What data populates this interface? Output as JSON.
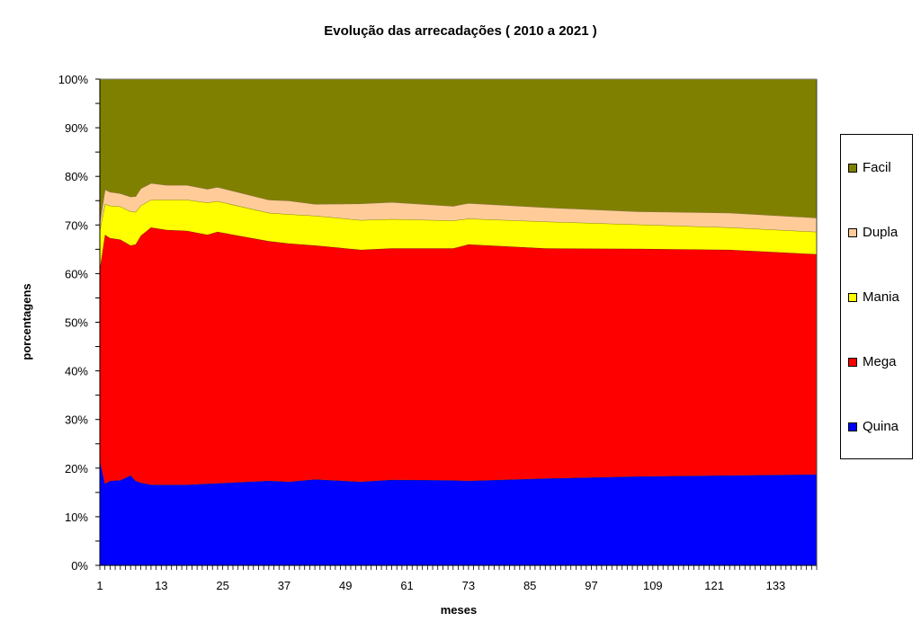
{
  "chart_data": {
    "type": "area",
    "stacked": true,
    "normalized": true,
    "title": "Evolução das arrecadações ( 2010 a 2021 )",
    "xlabel": "meses",
    "ylabel": "porcentagens",
    "xlim": [
      1,
      141
    ],
    "ylim": [
      0,
      100
    ],
    "x_tick_labels": [
      "1",
      "13",
      "25",
      "37",
      "49",
      "61",
      "73",
      "85",
      "97",
      "109",
      "121",
      "133"
    ],
    "x_tick_values": [
      1,
      13,
      25,
      37,
      49,
      61,
      73,
      85,
      97,
      109,
      121,
      133
    ],
    "y_tick_labels": [
      "0%",
      "10%",
      "20%",
      "30%",
      "40%",
      "50%",
      "60%",
      "70%",
      "80%",
      "90%",
      "100%"
    ],
    "y_tick_values": [
      0,
      10,
      20,
      30,
      40,
      50,
      60,
      70,
      80,
      90,
      100
    ],
    "grid": false,
    "legend_position": "right",
    "x": [
      1,
      2,
      3,
      5,
      7,
      8,
      9,
      11,
      14,
      18,
      22,
      24,
      34,
      38,
      43,
      52,
      58,
      70,
      73,
      88,
      106,
      124,
      141
    ],
    "series": [
      {
        "name": "Quina",
        "color": "#0000FF",
        "values": [
          21.6,
          16.8,
          17.4,
          17.5,
          18.5,
          17.4,
          17.0,
          16.6,
          16.6,
          16.6,
          16.8,
          16.9,
          17.4,
          17.2,
          17.7,
          17.2,
          17.6,
          17.5,
          17.4,
          17.9,
          18.3,
          18.5,
          18.7
        ]
      },
      {
        "name": "Mega",
        "color": "#FF0000",
        "values": [
          39.4,
          51.2,
          49.9,
          49.5,
          47.3,
          48.6,
          50.8,
          52.9,
          52.4,
          52.2,
          51.2,
          51.7,
          49.3,
          49.0,
          48.1,
          47.7,
          47.6,
          47.7,
          48.6,
          47.3,
          46.8,
          46.4,
          45.3
        ]
      },
      {
        "name": "Mania",
        "color": "#FFFF00",
        "values": [
          8.0,
          6.3,
          6.7,
          6.8,
          7.0,
          6.7,
          6.2,
          5.7,
          6.2,
          6.4,
          6.6,
          6.3,
          5.8,
          6.0,
          6.1,
          6.1,
          6.0,
          5.7,
          5.3,
          5.5,
          5.0,
          4.6,
          4.6
        ]
      },
      {
        "name": "Dupla",
        "color": "#FFCC99",
        "values": [
          1.5,
          3.0,
          2.8,
          2.7,
          3.0,
          3.2,
          3.5,
          3.4,
          3.0,
          3.0,
          2.8,
          2.9,
          2.7,
          2.8,
          2.4,
          3.4,
          3.5,
          3.0,
          3.2,
          2.9,
          2.7,
          3.0,
          2.9
        ]
      },
      {
        "name": "Facil",
        "color": "#808000",
        "values": [
          29.5,
          22.7,
          23.2,
          23.5,
          24.2,
          24.1,
          22.5,
          21.4,
          21.8,
          21.8,
          22.6,
          22.2,
          24.8,
          25.0,
          25.7,
          25.6,
          25.3,
          26.1,
          25.5,
          26.4,
          27.2,
          27.5,
          28.5
        ]
      }
    ]
  }
}
